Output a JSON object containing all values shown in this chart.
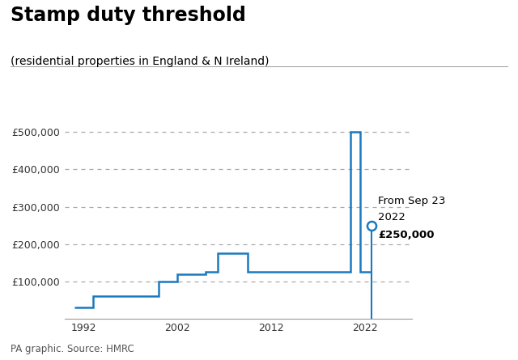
{
  "title": "Stamp duty threshold",
  "subtitle": "(residential properties in England & N Ireland)",
  "source": "PA graphic. Source: HMRC",
  "line_color": "#1a7abf",
  "background_color": "#ffffff",
  "annotation_text_line1": "From Sep 23",
  "annotation_text_line2": "2022",
  "annotation_text_line3": "£250,000",
  "annotation_year": 2022.7,
  "annotation_value": 250000,
  "ytick_labels": [
    "£100,000",
    "£200,000",
    "£300,000",
    "£400,000",
    "£500,000"
  ],
  "ytick_values": [
    100000,
    200000,
    300000,
    400000,
    500000
  ],
  "xtick_labels": [
    "1992",
    "2002",
    "2012",
    "2022"
  ],
  "xtick_values": [
    1992,
    2002,
    2012,
    2022
  ],
  "ylim": [
    0,
    560000
  ],
  "xlim": [
    1990.0,
    2027.0
  ],
  "step_x": [
    1991.0,
    1993.0,
    1993.0,
    2000.0,
    2000.0,
    2002.0,
    2002.0,
    2005.0,
    2005.0,
    2006.3,
    2006.3,
    2009.5,
    2009.5,
    2016.0,
    2016.0,
    2020.5,
    2020.5,
    2021.5,
    2021.5,
    2022.7
  ],
  "step_y": [
    30000,
    30000,
    60000,
    60000,
    100000,
    100000,
    120000,
    120000,
    125000,
    125000,
    175000,
    175000,
    125000,
    125000,
    125000,
    125000,
    500000,
    500000,
    125000,
    125000
  ],
  "title_fontsize": 17,
  "subtitle_fontsize": 10,
  "source_fontsize": 8.5,
  "tick_fontsize": 9
}
